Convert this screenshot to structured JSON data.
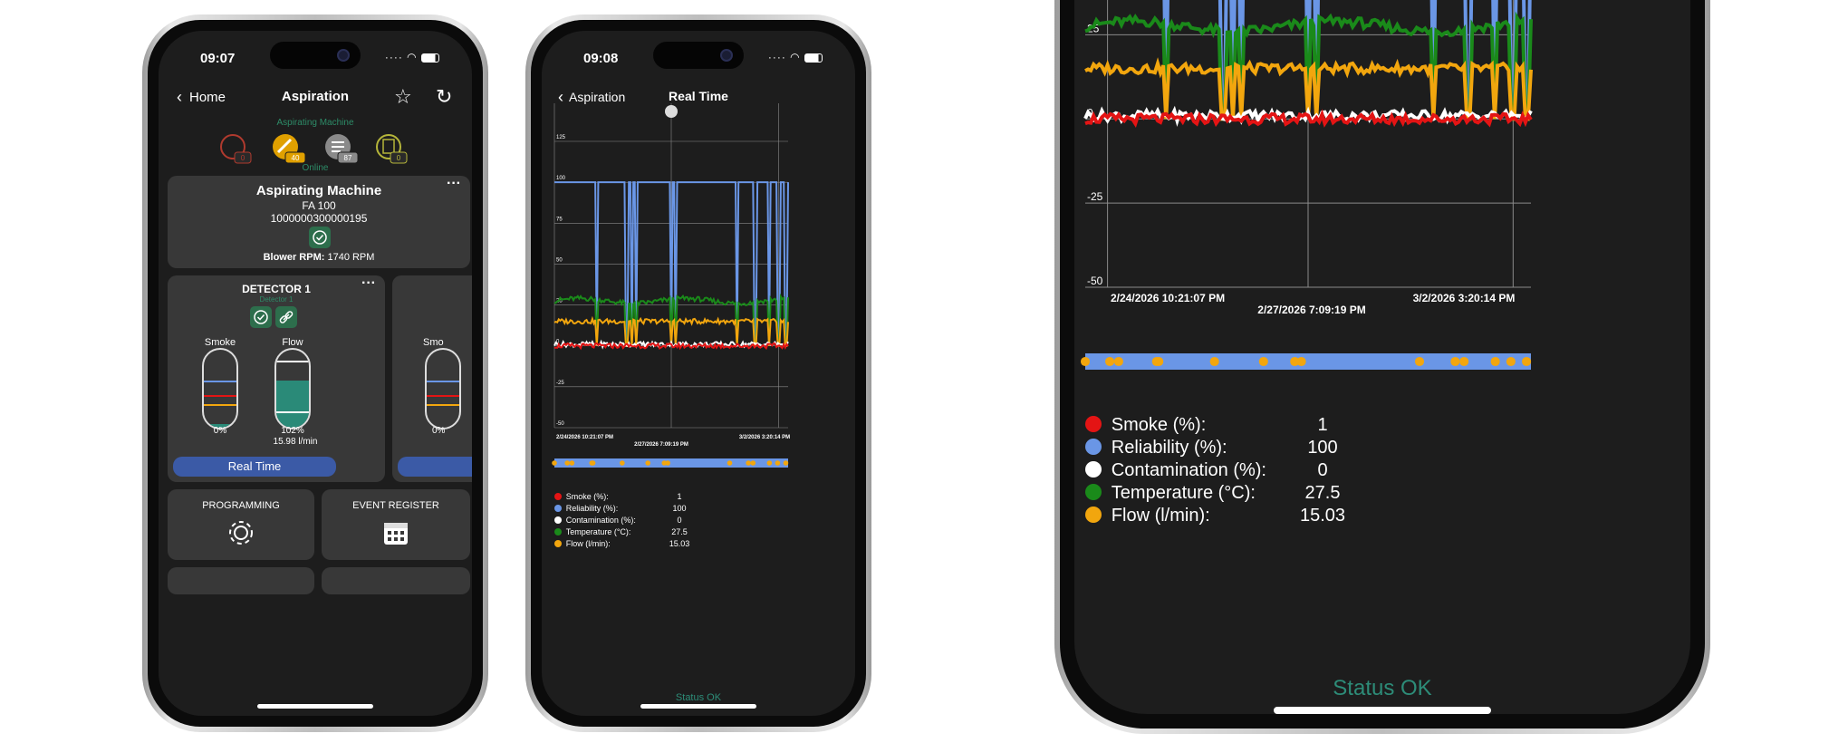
{
  "phone1": {
    "time": "09:07",
    "back_label": "Home",
    "title": "Aspiration",
    "machine_header": "Aspirating Machine",
    "status_badges": [
      {
        "icon": "alarm-bell-icon",
        "count": "0",
        "color": "#b03a2e"
      },
      {
        "icon": "wrench-icon",
        "count": "40",
        "color": "#e0a000"
      },
      {
        "icon": "checklist-icon",
        "count": "87",
        "color": "#8a8a8a"
      },
      {
        "icon": "clipboard-icon",
        "count": "0",
        "color": "#b5b53a"
      }
    ],
    "online_label": "Online",
    "machine_card": {
      "name": "Aspirating Machine",
      "model": "FA 100",
      "serial": "1000000300000195",
      "blower_label": "Blower RPM:",
      "blower_value": " 1740 RPM"
    },
    "detector": {
      "title": "DETECTOR 1",
      "subtitle": "Detector 1",
      "smoke_label": "Smoke",
      "smoke_value": "0%",
      "flow_label": "Flow",
      "flow_value": "102%",
      "flow_rate": "15.98 l/min",
      "realtime_label": "Real Time",
      "partial_label": "Smo",
      "partial_value": "0%"
    },
    "programming_label": "PROGRAMMING",
    "event_register_label": "EVENT REGISTER"
  },
  "phone2": {
    "time": "09:08",
    "back_label": "Aspiration",
    "title": "Real Time",
    "status": "Status OK"
  },
  "phone3": {
    "status": "Status OK"
  },
  "chart_data": {
    "type": "line",
    "ylim": [
      -50,
      125
    ],
    "yticks": [
      125,
      100,
      75,
      50,
      25,
      0,
      -25,
      -50
    ],
    "x_labels": [
      "2/24/2026 10:21:07 PM",
      "2/27/2026 7:09:19 PM",
      "3/2/2026 3:20:14 PM"
    ],
    "series": [
      {
        "name": "Smoke (%)",
        "value": "1",
        "color": "#e41414",
        "level": 0
      },
      {
        "name": "Reliability (%)",
        "value": "100",
        "color": "#6a96e6",
        "level": 100
      },
      {
        "name": "Contamination (%)",
        "value": "0",
        "color": "#ffffff",
        "level": 1
      },
      {
        "name": "Temperature (°C)",
        "value": "27.5",
        "color": "#1a8a1a",
        "level": 27.5
      },
      {
        "name": "Flow (l/min)",
        "value": "15.03",
        "color": "#f2a60e",
        "level": 15
      }
    ],
    "event_marker_color": "#f2a60e",
    "timeline_color": "#6a96e6"
  }
}
